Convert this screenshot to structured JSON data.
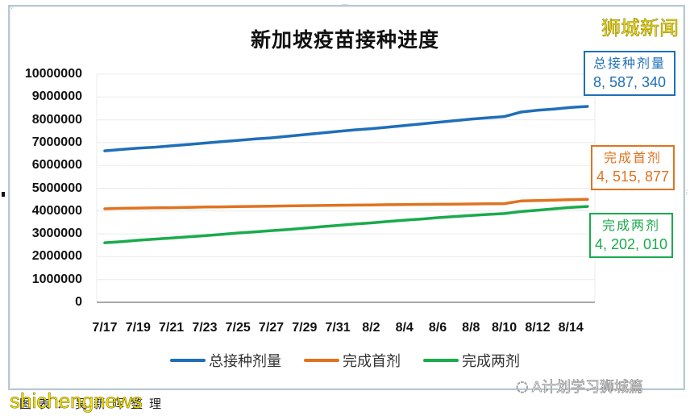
{
  "chart_data": {
    "type": "line",
    "title": "新加坡疫苗接种进度",
    "xlabel": "",
    "ylabel": "",
    "ylim": [
      0,
      10000000
    ],
    "yticks": [
      0,
      1000000,
      2000000,
      3000000,
      4000000,
      5000000,
      6000000,
      7000000,
      8000000,
      9000000,
      10000000
    ],
    "grid": true,
    "legend_position": "bottom",
    "x": [
      "7/17",
      "7/18",
      "7/19",
      "7/20",
      "7/21",
      "7/22",
      "7/23",
      "7/24",
      "7/25",
      "7/26",
      "7/27",
      "7/28",
      "7/29",
      "7/30",
      "7/31",
      "8/1",
      "8/2",
      "8/3",
      "8/4",
      "8/5",
      "8/6",
      "8/7",
      "8/8",
      "8/9",
      "8/10",
      "8/11",
      "8/12",
      "8/13",
      "8/14",
      "8/15"
    ],
    "xtick_labels": [
      "7/17",
      "7/19",
      "7/21",
      "7/23",
      "7/25",
      "7/27",
      "7/29",
      "7/31",
      "8/2",
      "8/4",
      "8/6",
      "8/8",
      "8/10",
      "8/12",
      "8/14"
    ],
    "series": [
      {
        "name": "总接种剂量",
        "color": "#1f6fb8",
        "values": [
          6640000,
          6700000,
          6760000,
          6800000,
          6860000,
          6920000,
          6980000,
          7040000,
          7100000,
          7160000,
          7210000,
          7280000,
          7350000,
          7420000,
          7490000,
          7560000,
          7610000,
          7680000,
          7750000,
          7820000,
          7890000,
          7960000,
          8030000,
          8090000,
          8140000,
          8340000,
          8420000,
          8470000,
          8540000,
          8587340
        ]
      },
      {
        "name": "完成首剂",
        "color": "#e07320",
        "values": [
          4100000,
          4120000,
          4130000,
          4140000,
          4150000,
          4160000,
          4175000,
          4185000,
          4195000,
          4205000,
          4215000,
          4225000,
          4235000,
          4245000,
          4255000,
          4262000,
          4270000,
          4278000,
          4286000,
          4292000,
          4298000,
          4305000,
          4312000,
          4318000,
          4325000,
          4440000,
          4460000,
          4480000,
          4500000,
          4515877
        ]
      },
      {
        "name": "完成两剂",
        "color": "#1aab4c",
        "values": [
          2610000,
          2660000,
          2720000,
          2770000,
          2820000,
          2870000,
          2920000,
          2980000,
          3040000,
          3090000,
          3140000,
          3190000,
          3250000,
          3310000,
          3370000,
          3430000,
          3480000,
          3540000,
          3600000,
          3650000,
          3710000,
          3760000,
          3810000,
          3850000,
          3890000,
          3980000,
          4040000,
          4100000,
          4160000,
          4202010
        ]
      }
    ]
  },
  "header": {
    "title": "新加坡疫苗接种进度",
    "brand": "狮城新闻"
  },
  "callouts": [
    {
      "label": "总接种剂量",
      "value": "8, 587, 340",
      "color": "#1f6fb8"
    },
    {
      "label": "完成首剂",
      "value": "4, 515, 877",
      "color": "#e07320"
    },
    {
      "label": "完成两剂",
      "value": "4, 202, 010",
      "color": "#1aab4c"
    }
  ],
  "y_axis": {
    "labels": [
      "10000000",
      "9000000",
      "8000000",
      "7000000",
      "6000000",
      "5000000",
      "4000000",
      "3000000",
      "2000000",
      "1000000",
      "0"
    ]
  },
  "x_axis": {
    "labels": [
      "7/17",
      "7/19",
      "7/21",
      "7/23",
      "7/25",
      "7/27",
      "7/29",
      "7/31",
      "8/2",
      "8/4",
      "8/6",
      "8/8",
      "8/10",
      "8/12",
      "8/14"
    ]
  },
  "legend": [
    {
      "label": "总接种剂量",
      "color": "#1f6fb8"
    },
    {
      "label": "完成首剂",
      "color": "#e07320"
    },
    {
      "label": "完成两剂",
      "color": "#1aab4c"
    }
  ],
  "footer": {
    "caption": "图表：吴新晖整理",
    "watermark_left": "shichengnews",
    "watermark_right": "A计划学习狮城篇"
  }
}
